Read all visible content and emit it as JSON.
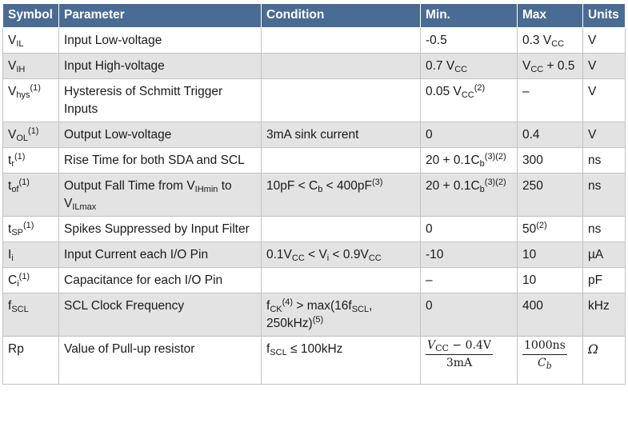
{
  "headers": {
    "symbol": "Symbol",
    "parameter": "Parameter",
    "condition": "Condition",
    "min": "Min.",
    "max": "Max",
    "units": "Units"
  },
  "rows": [
    {
      "symbol": {
        "base": "V",
        "sub": "IL"
      },
      "parameter": "Input Low-voltage",
      "condition": "",
      "min": "-0.5",
      "max": {
        "pre": "0.3 V",
        "sub": "CC"
      },
      "units": "V"
    },
    {
      "symbol": {
        "base": "V",
        "sub": "IH"
      },
      "parameter": "Input High-voltage",
      "condition": "",
      "min": {
        "pre": "0.7 V",
        "sub": "CC"
      },
      "max": {
        "pre": "V",
        "sub": "CC",
        "post": " + 0.5"
      },
      "units": "V"
    },
    {
      "symbol": {
        "base": "V",
        "sub": "hys",
        "sup": "(1)"
      },
      "parameter": "Hysteresis of Schmitt Trigger Inputs",
      "condition": "",
      "min": {
        "pre": "0.05 V",
        "sub": "CC",
        "sup": "(2)"
      },
      "max": "–",
      "units": "V"
    },
    {
      "symbol": {
        "base": "V",
        "sub": "OL",
        "sup": "(1)"
      },
      "parameter": "Output Low-voltage",
      "condition": "3mA sink current",
      "min": "0",
      "max": "0.4",
      "units": "V"
    },
    {
      "symbol": {
        "base": "t",
        "sub": "r",
        "sup": "(1)"
      },
      "parameter": "Rise Time for both SDA and SCL",
      "condition": "",
      "min": {
        "pre": "20 + 0.1C",
        "sub": "b",
        "sup": "(3)(2)"
      },
      "max": "300",
      "units": "ns"
    },
    {
      "symbol": {
        "base": "t",
        "sub": "of",
        "sup": "(1)"
      },
      "parameter": {
        "p1": "Output Fall Time from V",
        "s1": "IHmin",
        "p2": " to V",
        "s2": "ILmax"
      },
      "condition": {
        "pre": "10pF < C",
        "sub": "b",
        "post": " < 400pF",
        "sup": "(3)"
      },
      "min": {
        "pre": "20 + 0.1C",
        "sub": "b",
        "sup": "(3)(2)"
      },
      "max": "250",
      "units": "ns"
    },
    {
      "symbol": {
        "base": "t",
        "sub": "SP",
        "sup": "(1)"
      },
      "parameter": "Spikes Suppressed by Input Filter",
      "condition": "",
      "min": "0",
      "max": {
        "pre": "50",
        "sup": "(2)"
      },
      "units": "ns"
    },
    {
      "symbol": {
        "base": "I",
        "sub": "i"
      },
      "parameter": "Input Current each I/O Pin",
      "condition": {
        "p1": "0.1V",
        "s1": "CC",
        "p2": " < V",
        "s2": "i",
        "p3": " < 0.9V",
        "s3": "CC"
      },
      "min": "-10",
      "max": "10",
      "units": "µA"
    },
    {
      "symbol": {
        "base": "C",
        "sub": "i",
        "sup": "(1)"
      },
      "parameter": "Capacitance for each I/O Pin",
      "condition": "",
      "min": "–",
      "max": "10",
      "units": "pF"
    },
    {
      "symbol": {
        "base": "f",
        "sub": "SCL"
      },
      "parameter": "SCL Clock Frequency",
      "condition": {
        "p1": "f",
        "s1": "CK",
        "u1": "(4)",
        "p2": " > max(16f",
        "s2": "SCL",
        "p3": ",",
        "p4": "250kHz)",
        "u2": "(5)"
      },
      "min": "0",
      "max": "400",
      "units": "kHz"
    },
    {
      "symbol": {
        "base": "Rp"
      },
      "parameter": "Value of Pull-up resistor",
      "condition": {
        "p1": "f",
        "s1": "SCL",
        "p2": " ≤ 100kHz"
      },
      "min": {
        "num_pre": "V",
        "num_sub": "CC",
        "num_post": " − 0.4V",
        "den": "3mA"
      },
      "max": {
        "num": "1000ns",
        "den_pre": "C",
        "den_sub": "b"
      },
      "units": "Ω"
    }
  ]
}
